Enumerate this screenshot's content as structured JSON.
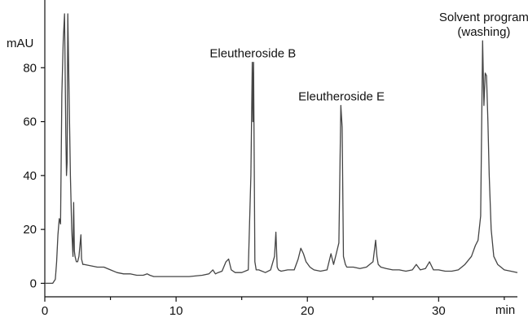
{
  "chart_data": {
    "type": "line",
    "title": "",
    "xlabel": "min",
    "ylabel": "mAU",
    "xlim": [
      0,
      36
    ],
    "ylim": [
      -5,
      100
    ],
    "x_ticks": [
      0,
      10,
      20,
      30
    ],
    "y_ticks": [
      0,
      20,
      40,
      60,
      80
    ],
    "grid": false,
    "legend": "none",
    "line_color": "#444444",
    "series": [
      {
        "x": [
          0,
          0.6,
          0.8,
          0.9,
          1.0,
          1.1,
          1.2,
          1.3,
          1.4,
          1.5,
          1.6,
          1.65,
          1.7,
          1.75,
          1.85,
          1.95,
          2.0,
          2.05,
          2.15,
          2.2,
          2.25,
          2.3,
          2.4,
          2.5,
          2.6,
          2.75,
          2.8,
          2.85,
          2.9,
          3.0,
          3.5,
          4.0,
          4.5,
          5.0,
          5.5,
          6.0,
          6.5,
          7.0,
          7.5,
          7.8,
          8.0,
          8.3,
          9.0,
          10.0,
          11.0,
          12.0,
          12.5,
          12.8,
          13.0,
          13.2,
          13.5,
          13.8,
          14.0,
          14.2,
          14.5,
          15.0,
          15.5,
          15.7,
          15.8,
          15.85,
          15.9,
          16.0,
          16.1,
          16.3,
          16.8,
          17.2,
          17.5,
          17.6,
          17.7,
          17.8,
          18.0,
          18.5,
          19.0,
          19.3,
          19.5,
          19.7,
          19.9,
          20.2,
          20.5,
          21.0,
          21.5,
          21.8,
          22.0,
          22.2,
          22.4,
          22.55,
          22.65,
          22.75,
          22.9,
          23.0,
          23.5,
          24.0,
          24.5,
          25.0,
          25.2,
          25.3,
          25.4,
          25.6,
          26.0,
          26.5,
          27.0,
          27.5,
          28.0,
          28.3,
          28.6,
          29.0,
          29.3,
          29.6,
          30.0,
          30.5,
          31.0,
          31.5,
          32.0,
          32.5,
          32.8,
          33.0,
          33.2,
          33.35,
          33.45,
          33.55,
          33.65,
          33.75,
          33.85,
          34.0,
          34.2,
          34.5,
          35.0,
          35.5,
          36.0
        ],
        "y": [
          0,
          0,
          1.5,
          8,
          18,
          24,
          22,
          70,
          90,
          100,
          55,
          40,
          45,
          100,
          70,
          40,
          30,
          20,
          10,
          30,
          12,
          10,
          8,
          8,
          10,
          18,
          9,
          8,
          7,
          7,
          6.5,
          6,
          6,
          5,
          4,
          3.5,
          3.5,
          3,
          3,
          3.5,
          3,
          2.5,
          2.5,
          2.5,
          2.5,
          3,
          3.5,
          5,
          3.5,
          4,
          4.5,
          8,
          9,
          5,
          4,
          4,
          5,
          40,
          82,
          60,
          82,
          8,
          5,
          5,
          4,
          5,
          10,
          19,
          6,
          5,
          4.5,
          5,
          5,
          9,
          13,
          11,
          8,
          6,
          5,
          4.5,
          5,
          11,
          7,
          11,
          15,
          66,
          58,
          10,
          7,
          6,
          6,
          5.5,
          6,
          8,
          16,
          10,
          7,
          6,
          5.5,
          5,
          5,
          4.5,
          5,
          7,
          5,
          5.5,
          8,
          5,
          5,
          4.5,
          4.5,
          5,
          7,
          10,
          14,
          16,
          25,
          90,
          66,
          78,
          77,
          60,
          40,
          20,
          10,
          7,
          5,
          4.5,
          4
        ]
      }
    ],
    "annotations": [
      {
        "lines": [
          "Eleutheroside B"
        ],
        "x": 15.85,
        "y": 82
      },
      {
        "lines": [
          "Eleutheroside E"
        ],
        "x": 22.6,
        "y": 66
      },
      {
        "lines": [
          "Solvent program",
          "(washing)"
        ],
        "x": 33.45,
        "y": 90
      }
    ]
  }
}
